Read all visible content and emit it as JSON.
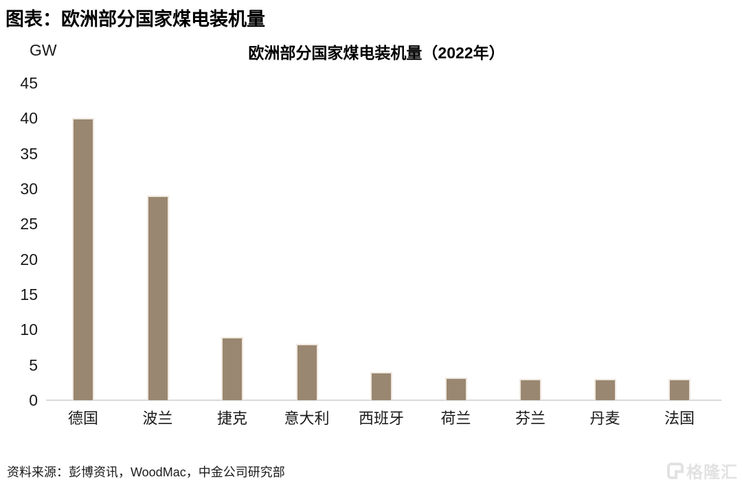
{
  "page": {
    "figure_title": "图表：欧洲部分国家煤电装机量",
    "source_note": "资料来源：彭博资讯，WoodMac，中金公司研究部",
    "watermark": {
      "icon": "gelonghui-g-logo",
      "text": "格隆汇",
      "color": "#e2e2e2"
    }
  },
  "chart_data": {
    "type": "bar",
    "title": "欧洲部分国家煤电装机量（2022年）",
    "unit_label": "GW",
    "xlabel": "",
    "ylabel": "GW",
    "categories": [
      "德国",
      "波兰",
      "捷克",
      "意大利",
      "西班牙",
      "荷兰",
      "芬兰",
      "丹麦",
      "法国"
    ],
    "values": [
      40,
      29,
      9,
      8,
      4,
      3.2,
      3,
      3,
      3
    ],
    "ylim": [
      0,
      45
    ],
    "ytick_step": 5,
    "grid": false,
    "legend": "none",
    "bar_color": "#9a8771",
    "bar_border_color": "#eee7de",
    "axis_color": "#d9d9d9"
  }
}
